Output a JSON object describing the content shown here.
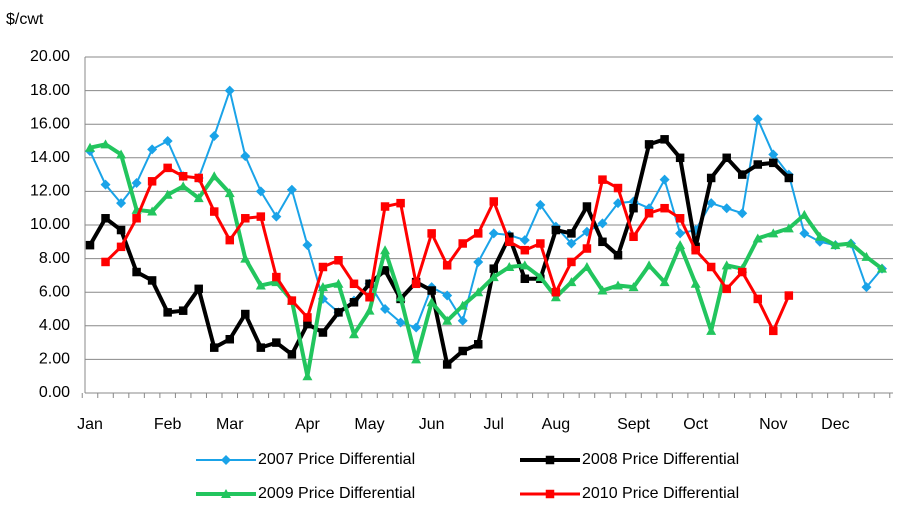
{
  "chart_data": {
    "type": "line",
    "y_label": "$/cwt",
    "categories": [
      "Jan",
      null,
      null,
      null,
      null,
      "Feb",
      null,
      null,
      null,
      "Mar",
      null,
      null,
      null,
      null,
      "Apr",
      null,
      null,
      null,
      "May",
      null,
      null,
      null,
      "Jun",
      null,
      null,
      null,
      "Jul",
      null,
      null,
      null,
      "Aug",
      null,
      null,
      null,
      null,
      "Sept",
      null,
      null,
      null,
      "Oct",
      null,
      null,
      null,
      null,
      "Nov",
      null,
      null,
      null,
      "Dec",
      null,
      null,
      null
    ],
    "ylim": [
      0,
      20
    ],
    "yticks": [
      {
        "value": 0,
        "label": "0.00"
      },
      {
        "value": 2,
        "label": "2.00"
      },
      {
        "value": 4,
        "label": "4.00"
      },
      {
        "value": 6,
        "label": "6.00"
      },
      {
        "value": 8,
        "label": "8.00"
      },
      {
        "value": 10,
        "label": "10.00"
      },
      {
        "value": 12,
        "label": "12.00"
      },
      {
        "value": 14,
        "label": "14.00"
      },
      {
        "value": 16,
        "label": "16.00"
      },
      {
        "value": 18,
        "label": "18.00"
      },
      {
        "value": 20,
        "label": "20.00"
      }
    ],
    "grid": true,
    "series": [
      {
        "name": "2007 Price Differential",
        "color": "#1aa3e8",
        "marker": "diamond",
        "width": 2,
        "values": [
          14.4,
          12.4,
          11.3,
          12.5,
          14.5,
          15.0,
          12.9,
          12.8,
          15.3,
          18.0,
          14.1,
          12.0,
          10.5,
          12.1,
          8.8,
          5.6,
          4.8,
          5.5,
          6.5,
          5.0,
          4.2,
          3.9,
          6.3,
          5.8,
          4.3,
          7.8,
          9.5,
          9.4,
          9.1,
          11.2,
          9.9,
          8.9,
          9.6,
          10.1,
          11.3,
          11.4,
          11.0,
          12.7,
          9.5,
          9.7,
          11.3,
          11.0,
          10.7,
          16.3,
          14.2,
          13.0,
          9.5,
          9.0,
          8.8,
          8.9,
          6.3,
          7.4
        ]
      },
      {
        "name": "2008 Price Differential",
        "color": "#000000",
        "marker": "square",
        "width": 4,
        "values": [
          8.8,
          10.4,
          9.7,
          7.2,
          6.7,
          4.8,
          4.9,
          6.2,
          2.7,
          3.2,
          4.7,
          2.7,
          3.0,
          2.3,
          4.1,
          3.6,
          4.8,
          5.4,
          6.5,
          7.3,
          5.6,
          6.6,
          6.1,
          1.7,
          2.5,
          2.9,
          7.4,
          9.3,
          6.8,
          6.8,
          9.7,
          9.5,
          11.1,
          9.0,
          8.2,
          11.0,
          14.8,
          15.1,
          14.0,
          8.7,
          12.8,
          14.0,
          13.0,
          13.6,
          13.7,
          12.8,
          null,
          null,
          null,
          null,
          null,
          null
        ]
      },
      {
        "name": "2009 Price Differential",
        "color": "#22c55e",
        "marker": "triangle",
        "width": 4,
        "values": [
          14.6,
          14.8,
          14.2,
          10.9,
          10.8,
          11.8,
          12.3,
          11.6,
          12.9,
          11.9,
          8.0,
          6.4,
          6.6,
          5.5,
          1.0,
          6.3,
          6.5,
          3.5,
          4.9,
          8.5,
          5.7,
          2.0,
          5.4,
          4.3,
          5.2,
          6.0,
          6.9,
          7.5,
          7.6,
          6.9,
          5.7,
          6.6,
          7.5,
          6.1,
          6.4,
          6.3,
          7.6,
          6.6,
          8.8,
          6.5,
          3.7,
          7.6,
          7.4,
          9.2,
          9.5,
          9.8,
          10.6,
          9.3,
          8.8,
          8.9,
          8.1,
          7.4
        ]
      },
      {
        "name": "2010 Price Differential",
        "color": "#ff0000",
        "marker": "square",
        "width": 3,
        "values": [
          null,
          7.8,
          8.7,
          10.4,
          12.6,
          13.4,
          12.9,
          12.8,
          10.8,
          9.1,
          10.4,
          10.5,
          6.9,
          5.5,
          4.5,
          7.5,
          7.9,
          6.5,
          5.7,
          11.1,
          11.3,
          6.5,
          9.5,
          7.6,
          8.9,
          9.5,
          11.4,
          9.0,
          8.5,
          8.9,
          6.0,
          7.8,
          8.6,
          12.7,
          12.2,
          9.3,
          10.7,
          11.0,
          10.4,
          8.5,
          7.5,
          6.2,
          7.2,
          5.6,
          3.7,
          5.8,
          null,
          null,
          null,
          null,
          null,
          null
        ]
      }
    ]
  }
}
